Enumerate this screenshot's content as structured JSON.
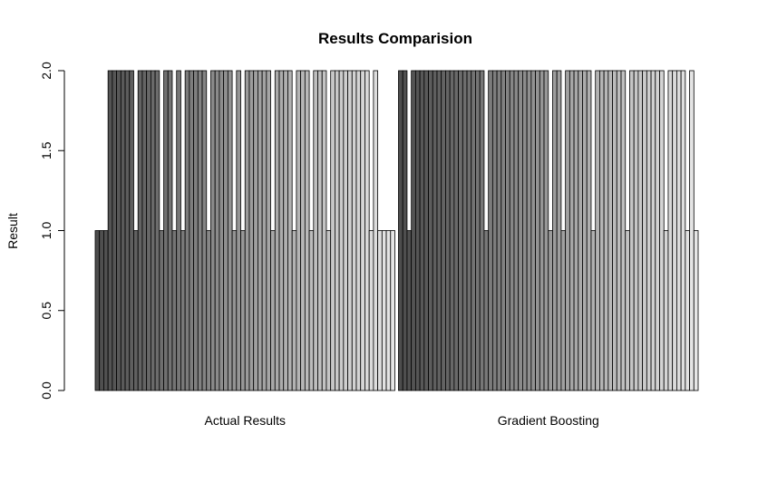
{
  "chart_data": {
    "type": "bar",
    "title": "Results Comparision",
    "xlabel": "",
    "ylabel": "Result",
    "ylim": [
      0,
      2
    ],
    "y_ticks": [
      "0.0",
      "0.5",
      "1.0",
      "1.5",
      "2.0"
    ],
    "grid": false,
    "legend": "none",
    "colors": {
      "dark": "#4d4d4d",
      "light": "#e6e6e6",
      "border": "#000000",
      "axis": "#000000"
    },
    "groups": [
      {
        "name": "Actual Results",
        "values": [
          1,
          1,
          1,
          2,
          2,
          2,
          2,
          2,
          2,
          1,
          2,
          2,
          2,
          2,
          2,
          1,
          2,
          2,
          1,
          2,
          1,
          2,
          2,
          2,
          2,
          2,
          1,
          2,
          2,
          2,
          2,
          2,
          1,
          2,
          1,
          2,
          2,
          2,
          2,
          2,
          2,
          1,
          2,
          2,
          2,
          2,
          1,
          2,
          2,
          2,
          1,
          2,
          2,
          2,
          1,
          2,
          2,
          2,
          2,
          2,
          2,
          2,
          2,
          2,
          1,
          2,
          1,
          1,
          1,
          1
        ]
      },
      {
        "name": "Gradient Boosting",
        "values": [
          2,
          2,
          1,
          2,
          2,
          2,
          2,
          2,
          2,
          2,
          2,
          2,
          2,
          2,
          2,
          2,
          2,
          2,
          2,
          2,
          1,
          2,
          2,
          2,
          2,
          2,
          2,
          2,
          2,
          2,
          2,
          2,
          2,
          2,
          2,
          1,
          2,
          2,
          1,
          2,
          2,
          2,
          2,
          2,
          2,
          1,
          2,
          2,
          2,
          2,
          2,
          2,
          2,
          1,
          2,
          2,
          2,
          2,
          2,
          2,
          2,
          2,
          1,
          2,
          2,
          2,
          2,
          1,
          2,
          1
        ]
      }
    ]
  }
}
